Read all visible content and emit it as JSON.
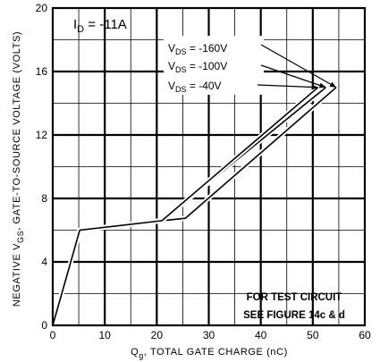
{
  "chart_data": {
    "type": "line",
    "title": "",
    "xlabel": {
      "symbol": "Q",
      "sub": "g",
      "text": ", TOTAL GATE CHARGE (nC)"
    },
    "ylabel": {
      "prefix": "NEGATIVE V",
      "sub": "GS",
      "text": ", GATE-TO-SOURCE VOLTAGE (VOLTS)"
    },
    "xlim": [
      0,
      60
    ],
    "ylim": [
      0,
      20
    ],
    "x_ticks": [
      "0",
      "10",
      "20",
      "30",
      "40",
      "50",
      "60"
    ],
    "y_ticks": [
      "0",
      "4",
      "8",
      "12",
      "16",
      "20"
    ],
    "grid": true,
    "condition": {
      "main": "I",
      "sub": "D",
      "value": " = -11A"
    },
    "series": [
      {
        "label": {
          "main": "V",
          "sub": "DS",
          "value": " = -160V"
        },
        "points": [
          [
            0,
            0
          ],
          [
            5.2,
            6
          ],
          [
            21,
            6.6
          ],
          [
            25.5,
            6.75
          ],
          [
            54.5,
            15
          ]
        ]
      },
      {
        "label": {
          "main": "V",
          "sub": "DS",
          "value": " = -100V"
        },
        "points": [
          [
            0,
            0
          ],
          [
            5.2,
            6
          ],
          [
            21,
            6.6
          ],
          [
            52.5,
            15
          ]
        ]
      },
      {
        "label": {
          "main": "V",
          "sub": "DS",
          "value": " = -40V"
        },
        "points": [
          [
            0,
            0
          ],
          [
            5.2,
            6
          ],
          [
            21,
            6.6
          ],
          [
            51,
            15
          ]
        ]
      }
    ],
    "note": [
      "FOR TEST CIRCUIT",
      "SEE FIGURE 14c & d"
    ]
  }
}
